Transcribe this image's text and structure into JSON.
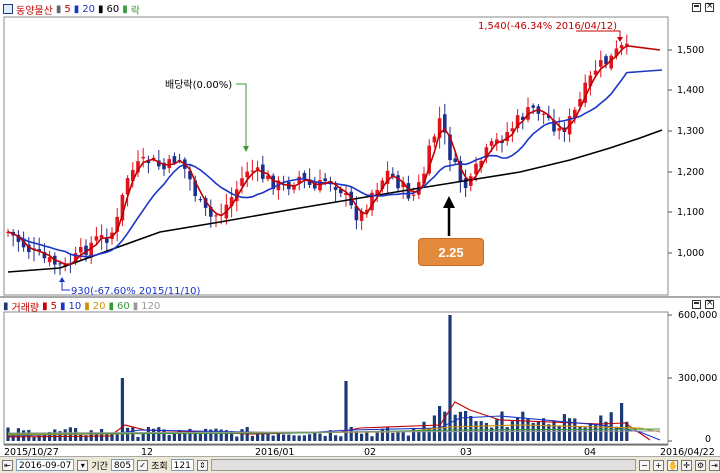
{
  "price_panel": {
    "stock_name": "동양물산",
    "ma_labels": [
      "5",
      "20",
      "60"
    ],
    "ex_dividend_marker_label": "락",
    "y_ticks": [
      "1,500",
      "1,400",
      "1,300",
      "1,200",
      "1,100",
      "1,000"
    ],
    "annotation_high": "1,540(-46.34% 2016/04/12)",
    "annotation_low": "930(-67.60% 2015/11/10)",
    "annotation_dividend": "배당락(0.00%)",
    "callout_value": "2.25"
  },
  "volume_panel": {
    "title": "거래량",
    "ma_labels": [
      "5",
      "10",
      "20",
      "60",
      "120"
    ],
    "y_ticks": [
      "600,000",
      "300,000",
      "0"
    ]
  },
  "x_axis": {
    "labels": [
      "2015/10/27",
      "12",
      "2016/01",
      "02",
      "03",
      "04",
      "2016/04/22"
    ]
  },
  "bottom_bar": {
    "date": "2016-09-07",
    "period_label": "기간",
    "period_value": "805",
    "view_label": "조회",
    "view_value": "121"
  },
  "colors": {
    "ma5": "#c00000",
    "ma20": "#1a35c8",
    "ma60": "#000000",
    "vol_ma5": "#c00000",
    "vol_ma10": "#1a35c8",
    "vol_ma20": "#d09000",
    "vol_ma60": "#3a9a3a",
    "vol_ma120": "#999999",
    "candle_up": "#e0141e",
    "candle_down": "#1c2f8c",
    "volume_bar": "#1c3a78",
    "callout_bg": "#e38a3d"
  },
  "icons": [
    "stock-search-icon",
    "zoom-out-icon",
    "zoom-in-icon",
    "hand-icon",
    "crosshair-icon",
    "settings-icon"
  ]
}
